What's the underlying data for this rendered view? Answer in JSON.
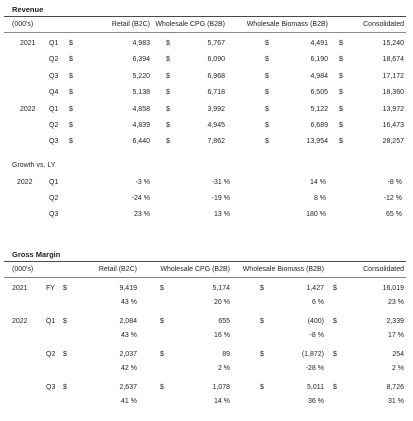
{
  "revenue": {
    "title": "Revenue",
    "units": "(000's)",
    "headers": [
      "Retail (B2C)",
      "Wholesale CPG (B2B)",
      "Wholesale Biomass (B2B)",
      "Consolidated"
    ],
    "rows": [
      {
        "year": "2021",
        "q": "Q1",
        "retail": "4,983",
        "cpg": "5,767",
        "bio": "4,491",
        "cons": "15,240"
      },
      {
        "year": "",
        "q": "Q2",
        "retail": "6,394",
        "cpg": "6,090",
        "bio": "6,190",
        "cons": "18,674"
      },
      {
        "year": "",
        "q": "Q3",
        "retail": "5,220",
        "cpg": "6,968",
        "bio": "4,984",
        "cons": "17,172"
      },
      {
        "year": "",
        "q": "Q4",
        "retail": "5,138",
        "cpg": "6,718",
        "bio": "6,505",
        "cons": "18,360"
      },
      {
        "year": "2022",
        "q": "Q1",
        "retail": "4,858",
        "cpg": "3,992",
        "bio": "5,122",
        "cons": "13,972"
      },
      {
        "year": "",
        "q": "Q2",
        "retail": "4,839",
        "cpg": "4,945",
        "bio": "6,689",
        "cons": "16,473"
      },
      {
        "year": "",
        "q": "Q3",
        "retail": "6,440",
        "cpg": "7,862",
        "bio": "13,954",
        "cons": "28,257"
      }
    ]
  },
  "growth": {
    "title": "Growth vs. LY",
    "rows": [
      {
        "year": "2022",
        "q": "Q1",
        "retail": "-3 %",
        "cpg": "-31 %",
        "bio": "14 %",
        "cons": "-8 %"
      },
      {
        "year": "",
        "q": "Q2",
        "retail": "-24 %",
        "cpg": "-19 %",
        "bio": "8 %",
        "cons": "-12 %"
      },
      {
        "year": "",
        "q": "Q3",
        "retail": "23 %",
        "cpg": "13 %",
        "bio": "180 %",
        "cons": "65 %"
      }
    ]
  },
  "margin": {
    "title": "Gross Margin",
    "units": "(000's)",
    "headers": [
      "Retail (B2C)",
      "Wholesale CPG (B2B)",
      "Wholesale Biomass (B2B)",
      "Consolidated"
    ],
    "rows": [
      {
        "year": "2021",
        "q": "FY",
        "retail": "9,419",
        "retail_pct": "43 %",
        "cpg": "5,174",
        "cpg_pct": "20 %",
        "bio": "1,427",
        "bio_pct": "6 %",
        "cons": "16,019",
        "cons_pct": "23 %"
      },
      {
        "year": "2022",
        "q": "Q1",
        "retail": "2,084",
        "retail_pct": "43 %",
        "cpg": "655",
        "cpg_pct": "16 %",
        "bio": "(400)",
        "bio_pct": "-8 %",
        "cons": "2,339",
        "cons_pct": "17 %"
      },
      {
        "year": "",
        "q": "Q2",
        "retail": "2,037",
        "retail_pct": "42 %",
        "cpg": "89",
        "cpg_pct": "2 %",
        "bio": "(1,872)",
        "bio_pct": "-28 %",
        "cons": "254",
        "cons_pct": "2 %"
      },
      {
        "year": "",
        "q": "Q3",
        "retail": "2,637",
        "retail_pct": "41 %",
        "cpg": "1,078",
        "cpg_pct": "14 %",
        "bio": "5,011",
        "bio_pct": "36 %",
        "cons": "8,726",
        "cons_pct": "31 %"
      }
    ]
  },
  "currency_symbol": "$"
}
